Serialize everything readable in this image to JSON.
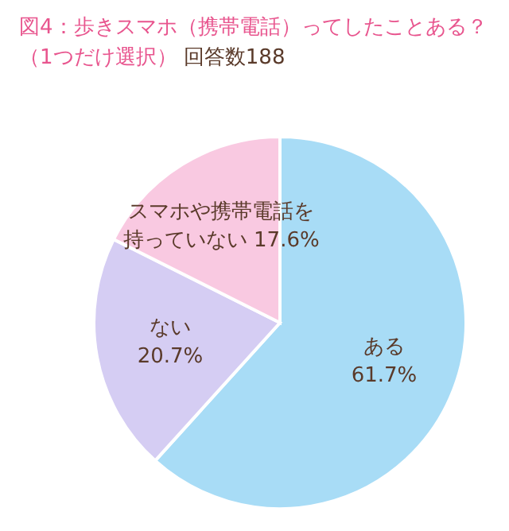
{
  "chart_data": {
    "type": "pie",
    "title": "図4：歩きスマホ（携帯電話）ってしたことある？（1つだけ選択）",
    "subtitle": "回答数188",
    "categories": [
      "ある",
      "ない",
      "スマホや携帯電話を持っていない"
    ],
    "values": [
      61.7,
      20.7,
      17.6
    ],
    "value_labels": [
      "61.7%",
      "20.7%",
      "17.6%"
    ],
    "colors": [
      "#a8dcf6",
      "#d5cdf3",
      "#f9c9e1"
    ]
  }
}
